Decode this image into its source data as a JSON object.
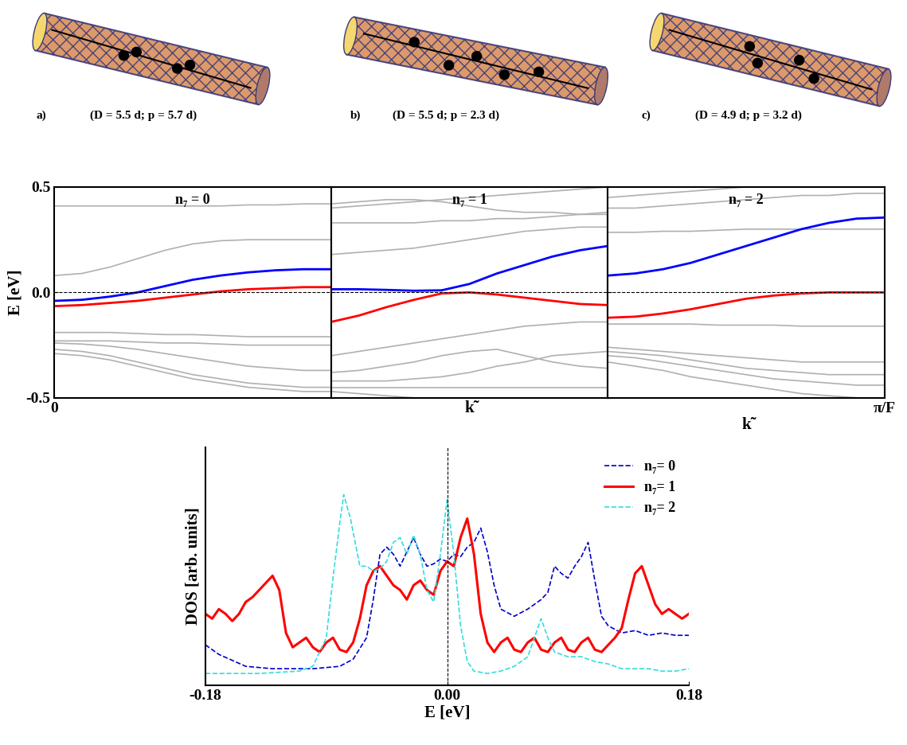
{
  "images": [
    {
      "label": "a)",
      "caption": "(D = 5.5 d; p = 5.7 d)"
    },
    {
      "label": "b)",
      "caption": "(D = 5.5 d; p = 2.3 d)"
    },
    {
      "label": "c)",
      "caption": "(D = 4.9 d; p = 3.2 d)"
    }
  ],
  "chart_data": [
    {
      "type": "line",
      "title": "n₇ = 0",
      "ylabel": "E [eV]",
      "x": [
        0,
        0.1,
        0.2,
        0.3,
        0.4,
        0.5,
        0.6,
        0.7,
        0.8,
        0.9,
        1.0
      ],
      "xlim": [
        0,
        1
      ],
      "xticks": [
        {
          "value": 0,
          "label": "0"
        }
      ],
      "ylim": [
        -0.5,
        0.5
      ],
      "yticks": [
        -0.5,
        0.0,
        0.5
      ],
      "hline": 0.0,
      "series": [
        {
          "color": "#b0b0b0",
          "values": [
            0.41,
            0.41,
            0.41,
            0.41,
            0.41,
            0.41,
            0.41,
            0.415,
            0.415,
            0.42,
            0.42
          ]
        },
        {
          "color": "#b0b0b0",
          "values": [
            0.08,
            0.09,
            0.12,
            0.16,
            0.2,
            0.23,
            0.245,
            0.25,
            0.25,
            0.25,
            0.25
          ]
        },
        {
          "color": "#b0b0b0",
          "values": [
            -0.19,
            -0.19,
            -0.19,
            -0.195,
            -0.2,
            -0.2,
            -0.205,
            -0.21,
            -0.21,
            -0.21,
            -0.21
          ]
        },
        {
          "color": "#b0b0b0",
          "values": [
            -0.23,
            -0.23,
            -0.23,
            -0.235,
            -0.24,
            -0.24,
            -0.245,
            -0.25,
            -0.25,
            -0.25,
            -0.25
          ]
        },
        {
          "color": "#b0b0b0",
          "values": [
            -0.24,
            -0.245,
            -0.255,
            -0.27,
            -0.29,
            -0.31,
            -0.33,
            -0.35,
            -0.36,
            -0.37,
            -0.37
          ]
        },
        {
          "color": "#b0b0b0",
          "values": [
            -0.27,
            -0.28,
            -0.3,
            -0.33,
            -0.36,
            -0.39,
            -0.41,
            -0.43,
            -0.44,
            -0.45,
            -0.45
          ]
        },
        {
          "color": "#b0b0b0",
          "values": [
            -0.29,
            -0.3,
            -0.32,
            -0.35,
            -0.38,
            -0.41,
            -0.43,
            -0.45,
            -0.46,
            -0.47,
            -0.47
          ]
        },
        {
          "color": "#0000ff",
          "values": [
            -0.04,
            -0.035,
            -0.02,
            0.0,
            0.03,
            0.06,
            0.08,
            0.095,
            0.105,
            0.11,
            0.11
          ]
        },
        {
          "color": "#ff0000",
          "values": [
            -0.065,
            -0.06,
            -0.05,
            -0.04,
            -0.025,
            -0.01,
            0.005,
            0.015,
            0.02,
            0.025,
            0.025
          ]
        }
      ]
    },
    {
      "type": "line",
      "title": "n₇ = 1",
      "xlabel": "k̃",
      "tick_labels": false,
      "x": [
        0,
        0.1,
        0.2,
        0.3,
        0.4,
        0.5,
        0.6,
        0.7,
        0.8,
        0.9,
        1.0
      ],
      "xlim": [
        0,
        1
      ],
      "xticks": [],
      "ylim": [
        -0.5,
        0.5
      ],
      "yticks": [
        -0.5,
        0.0,
        0.5
      ],
      "hline": 0.0,
      "series": [
        {
          "color": "#b0b0b0",
          "values": [
            0.4,
            0.41,
            0.42,
            0.43,
            0.44,
            0.45,
            0.46,
            0.47,
            0.48,
            0.49,
            0.5
          ]
        },
        {
          "color": "#b0b0b0",
          "values": [
            0.42,
            0.43,
            0.44,
            0.44,
            0.43,
            0.41,
            0.39,
            0.38,
            0.38,
            0.37,
            0.37
          ]
        },
        {
          "color": "#b0b0b0",
          "values": [
            0.33,
            0.33,
            0.33,
            0.33,
            0.34,
            0.34,
            0.35,
            0.35,
            0.36,
            0.37,
            0.38
          ]
        },
        {
          "color": "#b0b0b0",
          "values": [
            0.18,
            0.19,
            0.2,
            0.21,
            0.23,
            0.25,
            0.27,
            0.29,
            0.3,
            0.31,
            0.31
          ]
        },
        {
          "color": "#b0b0b0",
          "values": [
            -0.3,
            -0.28,
            -0.26,
            -0.24,
            -0.22,
            -0.2,
            -0.18,
            -0.16,
            -0.15,
            -0.14,
            -0.14
          ]
        },
        {
          "color": "#b0b0b0",
          "values": [
            -0.38,
            -0.37,
            -0.35,
            -0.33,
            -0.3,
            -0.28,
            -0.27,
            -0.3,
            -0.33,
            -0.35,
            -0.36
          ]
        },
        {
          "color": "#b0b0b0",
          "values": [
            -0.42,
            -0.42,
            -0.42,
            -0.41,
            -0.4,
            -0.38,
            -0.35,
            -0.33,
            -0.3,
            -0.29,
            -0.28
          ]
        },
        {
          "color": "#b0b0b0",
          "values": [
            -0.45,
            -0.45,
            -0.45,
            -0.45,
            -0.45,
            -0.45,
            -0.45,
            -0.45,
            -0.45,
            -0.45,
            -0.45
          ]
        },
        {
          "color": "#b0b0b0",
          "values": [
            -0.47,
            -0.48,
            -0.49,
            -0.5,
            -0.5,
            -0.5,
            -0.5,
            -0.5,
            -0.5,
            -0.5,
            -0.5
          ]
        },
        {
          "color": "#0000ff",
          "values": [
            0.015,
            0.015,
            0.012,
            0.008,
            0.01,
            0.04,
            0.09,
            0.13,
            0.17,
            0.2,
            0.22
          ]
        },
        {
          "color": "#ff0000",
          "values": [
            -0.14,
            -0.11,
            -0.07,
            -0.035,
            -0.005,
            0.0,
            -0.01,
            -0.025,
            -0.04,
            -0.055,
            -0.06
          ]
        }
      ]
    },
    {
      "type": "line",
      "title": "n₇ = 2",
      "xlabel": "k̃",
      "tick_labels": "x",
      "x": [
        0,
        0.1,
        0.2,
        0.3,
        0.4,
        0.5,
        0.6,
        0.7,
        0.8,
        0.9,
        1.0
      ],
      "xlim": [
        0,
        1
      ],
      "xticks": [
        {
          "value": 1,
          "label": "π/F"
        }
      ],
      "ylim": [
        -0.5,
        0.5
      ],
      "yticks": [
        -0.5,
        0.0,
        0.5
      ],
      "hline": 0.0,
      "series": [
        {
          "color": "#b0b0b0",
          "values": [
            0.45,
            0.46,
            0.47,
            0.48,
            0.49,
            0.5,
            0.5,
            0.5,
            0.5,
            0.5,
            0.5
          ]
        },
        {
          "color": "#b0b0b0",
          "values": [
            0.4,
            0.4,
            0.41,
            0.42,
            0.43,
            0.44,
            0.45,
            0.46,
            0.46,
            0.47,
            0.47
          ]
        },
        {
          "color": "#b0b0b0",
          "values": [
            0.285,
            0.285,
            0.29,
            0.29,
            0.295,
            0.3,
            0.3,
            0.3,
            0.3,
            0.3,
            0.3
          ]
        },
        {
          "color": "#b0b0b0",
          "values": [
            -0.15,
            -0.15,
            -0.15,
            -0.15,
            -0.155,
            -0.155,
            -0.155,
            -0.16,
            -0.16,
            -0.16,
            -0.16
          ]
        },
        {
          "color": "#b0b0b0",
          "values": [
            -0.26,
            -0.27,
            -0.28,
            -0.29,
            -0.3,
            -0.31,
            -0.32,
            -0.33,
            -0.33,
            -0.33,
            -0.33
          ]
        },
        {
          "color": "#b0b0b0",
          "values": [
            -0.28,
            -0.29,
            -0.3,
            -0.32,
            -0.34,
            -0.36,
            -0.37,
            -0.38,
            -0.39,
            -0.39,
            -0.39
          ]
        },
        {
          "color": "#b0b0b0",
          "values": [
            -0.3,
            -0.31,
            -0.33,
            -0.35,
            -0.37,
            -0.39,
            -0.41,
            -0.42,
            -0.43,
            -0.44,
            -0.44
          ]
        },
        {
          "color": "#b0b0b0",
          "values": [
            -0.33,
            -0.35,
            -0.37,
            -0.4,
            -0.42,
            -0.44,
            -0.46,
            -0.48,
            -0.49,
            -0.5,
            -0.5
          ]
        },
        {
          "color": "#0000ff",
          "values": [
            0.08,
            0.09,
            0.11,
            0.14,
            0.18,
            0.22,
            0.26,
            0.3,
            0.33,
            0.35,
            0.355
          ]
        },
        {
          "color": "#ff0000",
          "values": [
            -0.12,
            -0.115,
            -0.1,
            -0.08,
            -0.055,
            -0.03,
            -0.015,
            -0.005,
            0.0,
            0.0,
            0.0
          ]
        }
      ]
    },
    {
      "type": "line",
      "xlabel": "E [eV]",
      "ylabel": "DOS [arb. units]",
      "tick_labels": "x",
      "xlim": [
        -0.18,
        0.18
      ],
      "xticks": [
        -0.18,
        {
          "value": 0,
          "label": "0.00"
        },
        0.18
      ],
      "ylim": [
        0,
        1
      ],
      "vline": 0.0,
      "legend": "upper right",
      "series": [
        {
          "name": "n₇= 0",
          "color": "#0000cc",
          "line_style": "dashed",
          "x": [
            -0.18,
            -0.17,
            -0.15,
            -0.13,
            -0.1,
            -0.08,
            -0.07,
            -0.06,
            -0.055,
            -0.05,
            -0.045,
            -0.04,
            -0.035,
            -0.03,
            -0.025,
            -0.02,
            -0.015,
            -0.01,
            -0.005,
            0.0,
            0.005,
            0.01,
            0.015,
            0.02,
            0.025,
            0.03,
            0.035,
            0.04,
            0.05,
            0.06,
            0.07,
            0.075,
            0.08,
            0.085,
            0.09,
            0.095,
            0.1,
            0.105,
            0.11,
            0.115,
            0.12,
            0.13,
            0.14,
            0.15,
            0.16,
            0.17,
            0.18
          ],
          "values": [
            0.17,
            0.13,
            0.08,
            0.07,
            0.07,
            0.08,
            0.11,
            0.2,
            0.36,
            0.55,
            0.58,
            0.55,
            0.5,
            0.56,
            0.62,
            0.55,
            0.5,
            0.51,
            0.53,
            0.52,
            0.55,
            0.54,
            0.58,
            0.6,
            0.66,
            0.56,
            0.42,
            0.32,
            0.29,
            0.32,
            0.36,
            0.39,
            0.5,
            0.47,
            0.45,
            0.5,
            0.54,
            0.6,
            0.44,
            0.29,
            0.25,
            0.22,
            0.23,
            0.21,
            0.22,
            0.21,
            0.21
          ]
        },
        {
          "name": "n₇= 1",
          "color": "#ff0000",
          "line_style": "solid",
          "x": [
            -0.18,
            -0.175,
            -0.17,
            -0.165,
            -0.16,
            -0.155,
            -0.15,
            -0.145,
            -0.14,
            -0.135,
            -0.13,
            -0.125,
            -0.12,
            -0.115,
            -0.11,
            -0.105,
            -0.1,
            -0.095,
            -0.09,
            -0.085,
            -0.08,
            -0.075,
            -0.07,
            -0.065,
            -0.06,
            -0.055,
            -0.05,
            -0.045,
            -0.04,
            -0.035,
            -0.03,
            -0.025,
            -0.02,
            -0.015,
            -0.01,
            -0.005,
            0.0,
            0.005,
            0.01,
            0.015,
            0.02,
            0.025,
            0.03,
            0.035,
            0.04,
            0.045,
            0.05,
            0.055,
            0.06,
            0.065,
            0.07,
            0.075,
            0.08,
            0.085,
            0.09,
            0.095,
            0.1,
            0.105,
            0.11,
            0.115,
            0.12,
            0.125,
            0.13,
            0.135,
            0.14,
            0.145,
            0.15,
            0.155,
            0.16,
            0.165,
            0.17,
            0.175,
            0.18
          ],
          "values": [
            0.3,
            0.28,
            0.32,
            0.3,
            0.27,
            0.3,
            0.35,
            0.37,
            0.4,
            0.43,
            0.46,
            0.4,
            0.22,
            0.16,
            0.18,
            0.2,
            0.16,
            0.14,
            0.18,
            0.2,
            0.15,
            0.14,
            0.18,
            0.28,
            0.42,
            0.48,
            0.5,
            0.46,
            0.42,
            0.4,
            0.36,
            0.42,
            0.44,
            0.4,
            0.38,
            0.48,
            0.52,
            0.5,
            0.62,
            0.7,
            0.55,
            0.3,
            0.18,
            0.14,
            0.18,
            0.2,
            0.15,
            0.14,
            0.18,
            0.2,
            0.15,
            0.14,
            0.18,
            0.2,
            0.15,
            0.14,
            0.18,
            0.2,
            0.15,
            0.14,
            0.17,
            0.2,
            0.24,
            0.36,
            0.47,
            0.5,
            0.42,
            0.34,
            0.3,
            0.32,
            0.3,
            0.28,
            0.3
          ]
        },
        {
          "name": "n₇= 2",
          "color": "#33dddd",
          "line_style": "dashed",
          "x": [
            -0.18,
            -0.16,
            -0.14,
            -0.11,
            -0.1,
            -0.09,
            -0.085,
            -0.08,
            -0.077,
            -0.072,
            -0.065,
            -0.06,
            -0.055,
            -0.05,
            -0.045,
            -0.04,
            -0.035,
            -0.03,
            -0.025,
            -0.02,
            -0.015,
            -0.01,
            -0.005,
            0.0,
            0.005,
            0.01,
            0.015,
            0.02,
            0.03,
            0.04,
            0.05,
            0.06,
            0.065,
            0.07,
            0.075,
            0.08,
            0.09,
            0.1,
            0.11,
            0.12,
            0.13,
            0.14,
            0.15,
            0.16,
            0.17,
            0.18
          ],
          "values": [
            0.05,
            0.05,
            0.05,
            0.06,
            0.08,
            0.2,
            0.45,
            0.68,
            0.8,
            0.7,
            0.5,
            0.5,
            0.48,
            0.49,
            0.52,
            0.6,
            0.62,
            0.55,
            0.63,
            0.55,
            0.4,
            0.35,
            0.55,
            0.78,
            0.55,
            0.25,
            0.1,
            0.06,
            0.05,
            0.06,
            0.08,
            0.12,
            0.2,
            0.28,
            0.2,
            0.14,
            0.12,
            0.12,
            0.1,
            0.09,
            0.07,
            0.07,
            0.07,
            0.06,
            0.06,
            0.07
          ]
        }
      ]
    }
  ]
}
